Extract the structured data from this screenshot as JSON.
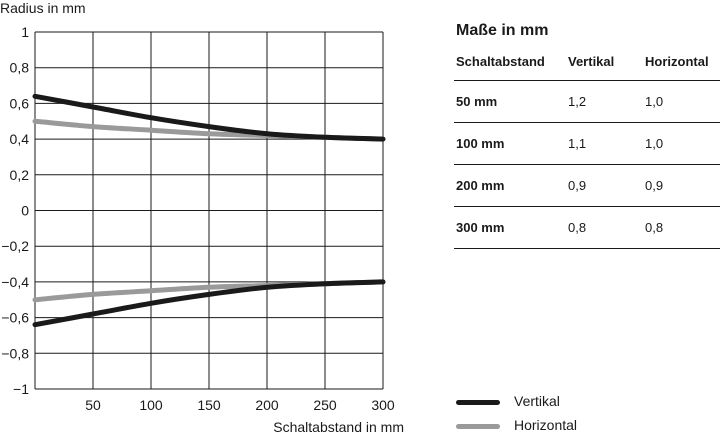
{
  "chart_data": {
    "type": "line",
    "xlabel": "Schaltabstand in mm",
    "ylabel": "Radius in mm",
    "xlim": [
      0,
      300
    ],
    "ylim": [
      -1,
      1
    ],
    "x_ticks": [
      50,
      100,
      150,
      200,
      250,
      300
    ],
    "y_ticks": [
      1,
      0.8,
      0.6,
      0.4,
      0.2,
      0,
      -0.2,
      -0.4,
      -0.6,
      -0.8,
      -1
    ],
    "y_tick_labels": [
      "1",
      "0,8",
      "0,6",
      "0,4",
      "0,2",
      "0",
      "−0,2",
      "−0,4",
      "−0,6",
      "−0,8",
      "−1"
    ],
    "grid": true,
    "series": [
      {
        "name": "Vertikal",
        "color": "#1a1a1a",
        "x": [
          0,
          50,
          100,
          150,
          200,
          250,
          300
        ],
        "upper": [
          0.64,
          0.58,
          0.52,
          0.47,
          0.43,
          0.41,
          0.4
        ],
        "lower": [
          -0.64,
          -0.58,
          -0.52,
          -0.47,
          -0.43,
          -0.41,
          -0.4
        ]
      },
      {
        "name": "Horizontal",
        "color": "#9a9a9a",
        "x": [
          0,
          50,
          100,
          150,
          200,
          250,
          300
        ],
        "upper": [
          0.5,
          0.47,
          0.45,
          0.43,
          0.42,
          0.41,
          0.4
        ],
        "lower": [
          -0.5,
          -0.47,
          -0.45,
          -0.43,
          -0.42,
          -0.41,
          -0.4
        ]
      }
    ]
  },
  "table": {
    "title": "Maße in mm",
    "headers": [
      "Schaltabstand",
      "Vertikal",
      "Horizontal"
    ],
    "rows": [
      [
        "50 mm",
        "1,2",
        "1,0"
      ],
      [
        "100 mm",
        "1,1",
        "1,0"
      ],
      [
        "200 mm",
        "0,9",
        "0,9"
      ],
      [
        "300 mm",
        "0,8",
        "0,8"
      ]
    ]
  },
  "legend": [
    {
      "label": "Vertikal",
      "color": "#1a1a1a"
    },
    {
      "label": "Horizontal",
      "color": "#9a9a9a"
    }
  ]
}
